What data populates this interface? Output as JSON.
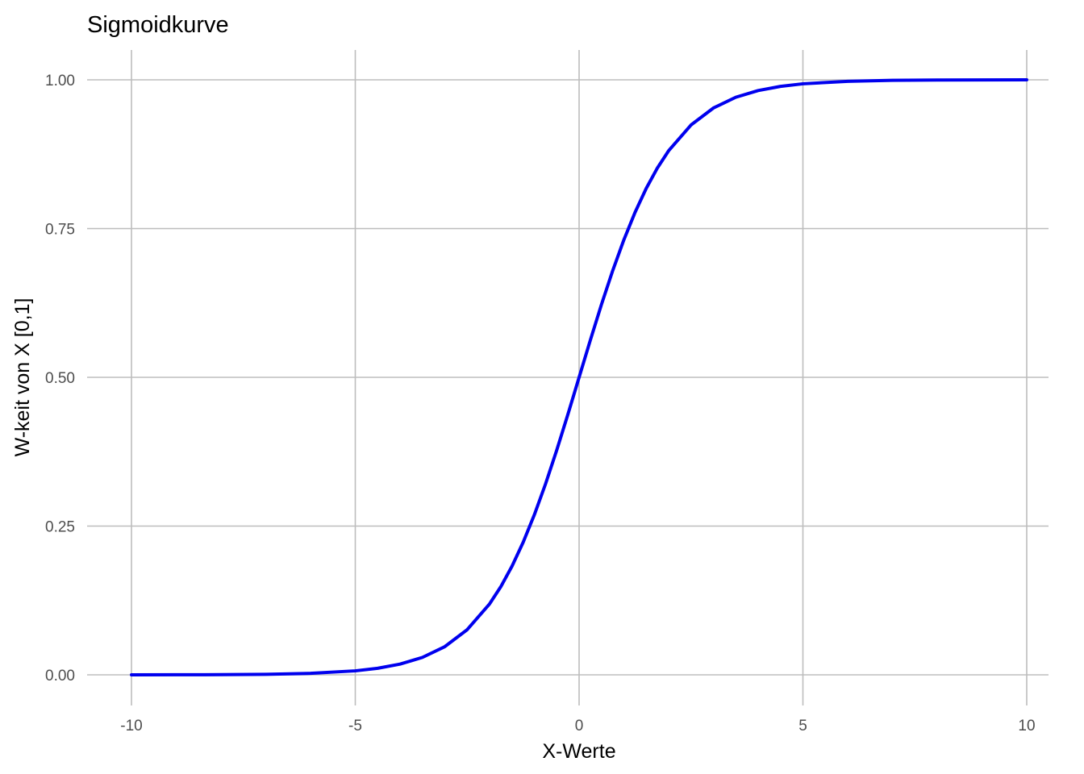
{
  "chart_data": {
    "type": "line",
    "title": "Sigmoidkurve",
    "xlabel": "X-Werte",
    "ylabel": "W-keit von X [0,1]",
    "xlim": [
      -10,
      10
    ],
    "ylim": [
      0,
      1
    ],
    "x_ticks": [
      -10,
      -5,
      0,
      5,
      10
    ],
    "x_tick_labels": [
      "-10",
      "-5",
      "0",
      "5",
      "10"
    ],
    "y_ticks": [
      0,
      0.25,
      0.5,
      0.75,
      1
    ],
    "y_tick_labels": [
      "0.00",
      "0.25",
      "0.50",
      "0.75",
      "1.00"
    ],
    "grid": true,
    "series": [
      {
        "color": "#0000ee",
        "x": [
          -10,
          -9,
          -8,
          -7,
          -6,
          -5,
          -4.5,
          -4,
          -3.5,
          -3,
          -2.5,
          -2,
          -1.75,
          -1.5,
          -1.25,
          -1,
          -0.75,
          -0.5,
          -0.25,
          0,
          0.25,
          0.5,
          0.75,
          1,
          1.25,
          1.5,
          1.75,
          2,
          2.5,
          3,
          3.5,
          4,
          4.5,
          5,
          6,
          7,
          8,
          9,
          10
        ],
        "y": [
          0.0,
          0.0001,
          0.0003,
          0.0009,
          0.0025,
          0.0067,
          0.011,
          0.018,
          0.0293,
          0.0474,
          0.0759,
          0.1192,
          0.148,
          0.1824,
          0.2227,
          0.2689,
          0.3208,
          0.3775,
          0.4378,
          0.5,
          0.5622,
          0.6225,
          0.6792,
          0.7311,
          0.7773,
          0.8176,
          0.852,
          0.8808,
          0.9241,
          0.9526,
          0.9707,
          0.982,
          0.989,
          0.9933,
          0.9975,
          0.9991,
          0.9997,
          0.9999,
          1.0
        ]
      }
    ]
  }
}
